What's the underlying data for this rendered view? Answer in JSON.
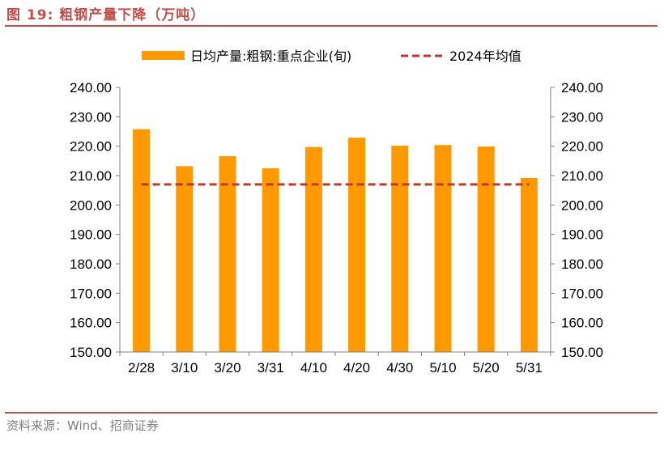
{
  "figure": {
    "title": "图 19:  粗钢产量下降（万吨）",
    "source": "资料来源：Wind、招商证券"
  },
  "colors": {
    "bar": "#ff9900",
    "avg_line": "#c0392b",
    "accent": "#c0504d"
  },
  "chart_data": {
    "type": "bar",
    "categories": [
      "2/28",
      "3/10",
      "3/20",
      "3/31",
      "4/10",
      "4/20",
      "4/30",
      "5/10",
      "5/20",
      "5/31"
    ],
    "series": [
      {
        "name": "日均产量:粗钢:重点企业(旬)",
        "type": "bar",
        "values": [
          225.8,
          213.2,
          216.6,
          212.5,
          219.7,
          222.9,
          220.2,
          220.4,
          219.9,
          209.2
        ]
      },
      {
        "name": "2024年均值",
        "type": "line",
        "style": "dashed",
        "values": [
          207.0,
          207.0,
          207.0,
          207.0,
          207.0,
          207.0,
          207.0,
          207.0,
          207.0,
          207.0
        ]
      }
    ],
    "y_ticks": [
      "240.00",
      "230.00",
      "220.00",
      "210.00",
      "200.00",
      "190.00",
      "180.00",
      "170.00",
      "160.00",
      "150.00"
    ],
    "ylim": [
      150,
      240
    ],
    "y2lim": [
      150,
      240
    ],
    "xlabel": "",
    "ylabel": "",
    "grid": false,
    "legend": "top"
  }
}
